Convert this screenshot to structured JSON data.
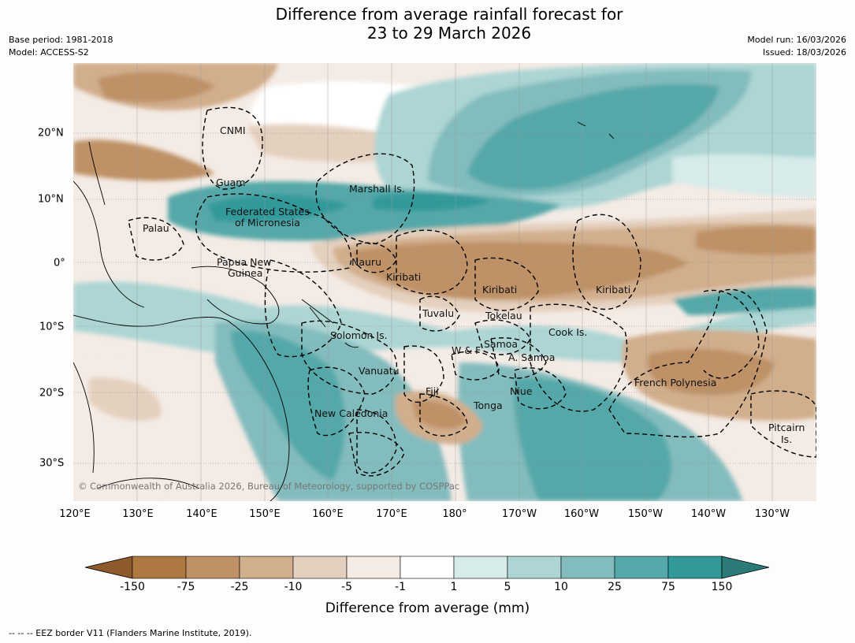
{
  "header": {
    "title_line1": "Difference from average rainfall forecast for",
    "title_line2": "23 to 29 March 2026",
    "base_period": "Base period: 1981-2018",
    "model": "Model: ACCESS-S2",
    "model_run": "Model run: 16/03/2026",
    "issued": "Issued: 18/03/2026"
  },
  "map": {
    "copyright": "© Commonwealth of Australia 2026, Bureau of Meteorology, supported by COSPPac",
    "x_axis_labels": [
      "120°E",
      "130°E",
      "140°E",
      "150°E",
      "160°E",
      "170°E",
      "180°",
      "170°W",
      "160°W",
      "150°W",
      "140°W",
      "130°W"
    ],
    "y_axis_labels": [
      "20°N",
      "10°N",
      "0°",
      "10°S",
      "20°S",
      "30°S"
    ],
    "places": [
      "CNMI",
      "Guam",
      "Marshall Is.",
      "Federated States",
      "of Micronesia",
      "Palau",
      "Papua New",
      "Guinea",
      "Nauru",
      "Kiribati",
      "Kiribati",
      "Kiribati",
      "Tuvalu",
      "Tokelau",
      "Solomon Is.",
      "Samoa",
      "W & F",
      "A. Samoa",
      "Cook Is.",
      "Vanuatu",
      "Fiji",
      "Niue",
      "Tonga",
      "French Polynesia",
      "New Caledonia",
      "Pitcairn",
      "Is."
    ]
  },
  "colorbar": {
    "title": "Difference from average (mm)",
    "ticks": [
      "-150",
      "-75",
      "-25",
      "-10",
      "-5",
      "-1",
      "1",
      "5",
      "10",
      "25",
      "75",
      "150"
    ],
    "colors": [
      "#8c5a2b",
      "#ae7841",
      "#be9166",
      "#d1ae8c",
      "#e4d0be",
      "#f4ebe5",
      "#ffffff",
      "#d6ebea",
      "#acd5d4",
      "#83bcbd",
      "#55a8a9",
      "#31999a",
      "#2c7a78"
    ]
  },
  "footer": {
    "legend": "--  --  -- EEZ border V11 (Flanders Marine Institute, 2019)."
  }
}
